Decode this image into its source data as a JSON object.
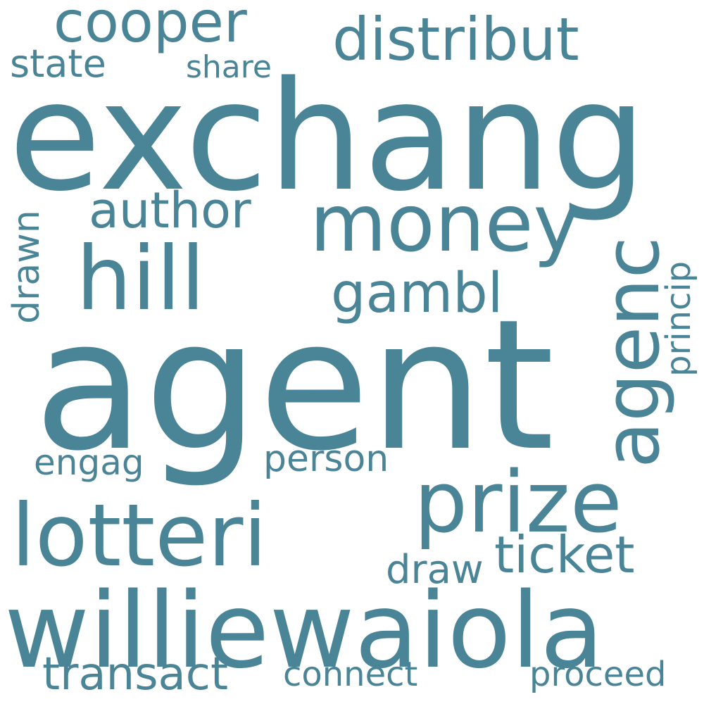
{
  "color": "#4a8497",
  "words": {
    "exchang": "exchang",
    "agent": "agent",
    "williewaiola": "williewaiola",
    "lotteri": "lotteri",
    "prize": "prize",
    "hill": "hill",
    "money": "money",
    "agenc": "agenc",
    "distribut": "distribut",
    "cooper": "cooper",
    "gambl": "gambl",
    "author": "author",
    "ticket": "ticket",
    "transact": "transact",
    "state": "state",
    "share": "share",
    "drawn": "drawn",
    "princip": "princip",
    "engag": "engag",
    "person": "person",
    "draw": "draw",
    "connect": "connect",
    "proceed": "proceed"
  }
}
